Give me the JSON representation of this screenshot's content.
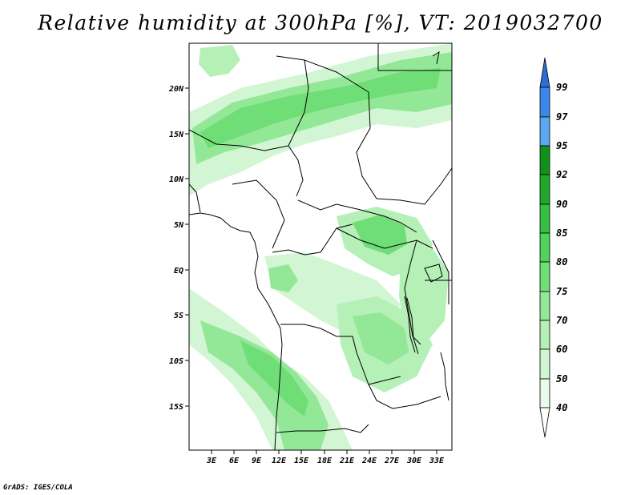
{
  "title": "Relative humidity at 300hPa [%], VT: 2019032700",
  "footer": "GrADS: IGES/COLA",
  "map": {
    "lat_labels": [
      "20N",
      "15N",
      "10N",
      "5N",
      "EQ",
      "5S",
      "10S",
      "15S"
    ],
    "lon_labels": [
      "3E",
      "6E",
      "9E",
      "12E",
      "15E",
      "18E",
      "21E",
      "24E",
      "27E",
      "30E",
      "33E"
    ]
  },
  "colorbar": {
    "levels": [
      "99",
      "97",
      "95",
      "92",
      "90",
      "85",
      "80",
      "75",
      "70",
      "60",
      "50",
      "40"
    ],
    "colors": [
      "#2b6fd6",
      "#3b88e8",
      "#5aa8f0",
      "#12911a",
      "#1fa82a",
      "#34c042",
      "#4fd35a",
      "#6fde76",
      "#93e898",
      "#b5f0b7",
      "#d2f6d3",
      "#ebfbeb",
      "#ffffff"
    ]
  }
}
